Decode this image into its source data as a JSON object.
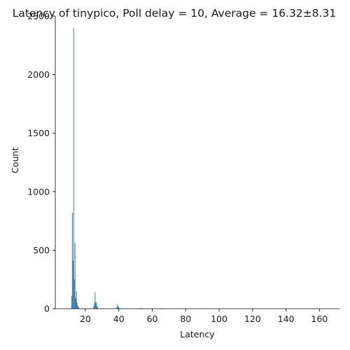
{
  "chart_data": {
    "type": "bar",
    "title": "Latency of tinypico, Poll delay = 10, Average = 16.32±8.31",
    "xlabel": "Latency",
    "ylabel": "Count",
    "xlim": [
      2,
      172
    ],
    "ylim": [
      0,
      2500
    ],
    "xticks": [
      20,
      40,
      60,
      80,
      100,
      120,
      140,
      160
    ],
    "yticks": [
      0,
      500,
      1000,
      1500,
      2000,
      2500
    ],
    "grid": false,
    "bar_color": "#3274a1",
    "bins": [
      {
        "x": 11.6,
        "count": 110
      },
      {
        "x": 12.0,
        "count": 820
      },
      {
        "x": 12.4,
        "count": 410
      },
      {
        "x": 12.8,
        "count": 2400
      },
      {
        "x": 13.2,
        "count": 250
      },
      {
        "x": 13.6,
        "count": 560
      },
      {
        "x": 14.0,
        "count": 90
      },
      {
        "x": 14.4,
        "count": 150
      },
      {
        "x": 14.8,
        "count": 55
      },
      {
        "x": 15.2,
        "count": 30
      },
      {
        "x": 15.6,
        "count": 15
      },
      {
        "x": 16.0,
        "count": 8
      },
      {
        "x": 24.8,
        "count": 20
      },
      {
        "x": 25.2,
        "count": 45
      },
      {
        "x": 25.6,
        "count": 140
      },
      {
        "x": 26.0,
        "count": 60
      },
      {
        "x": 26.4,
        "count": 55
      },
      {
        "x": 26.8,
        "count": 25
      },
      {
        "x": 27.2,
        "count": 12
      },
      {
        "x": 38.4,
        "count": 10
      },
      {
        "x": 38.8,
        "count": 35
      },
      {
        "x": 39.2,
        "count": 15
      },
      {
        "x": 39.6,
        "count": 20
      },
      {
        "x": 40.4,
        "count": 8
      },
      {
        "x": 52.0,
        "count": 6
      },
      {
        "x": 53.2,
        "count": 8
      },
      {
        "x": 65.6,
        "count": 5
      },
      {
        "x": 66.0,
        "count": 4
      },
      {
        "x": 78.8,
        "count": 4
      },
      {
        "x": 92.0,
        "count": 2
      }
    ]
  }
}
